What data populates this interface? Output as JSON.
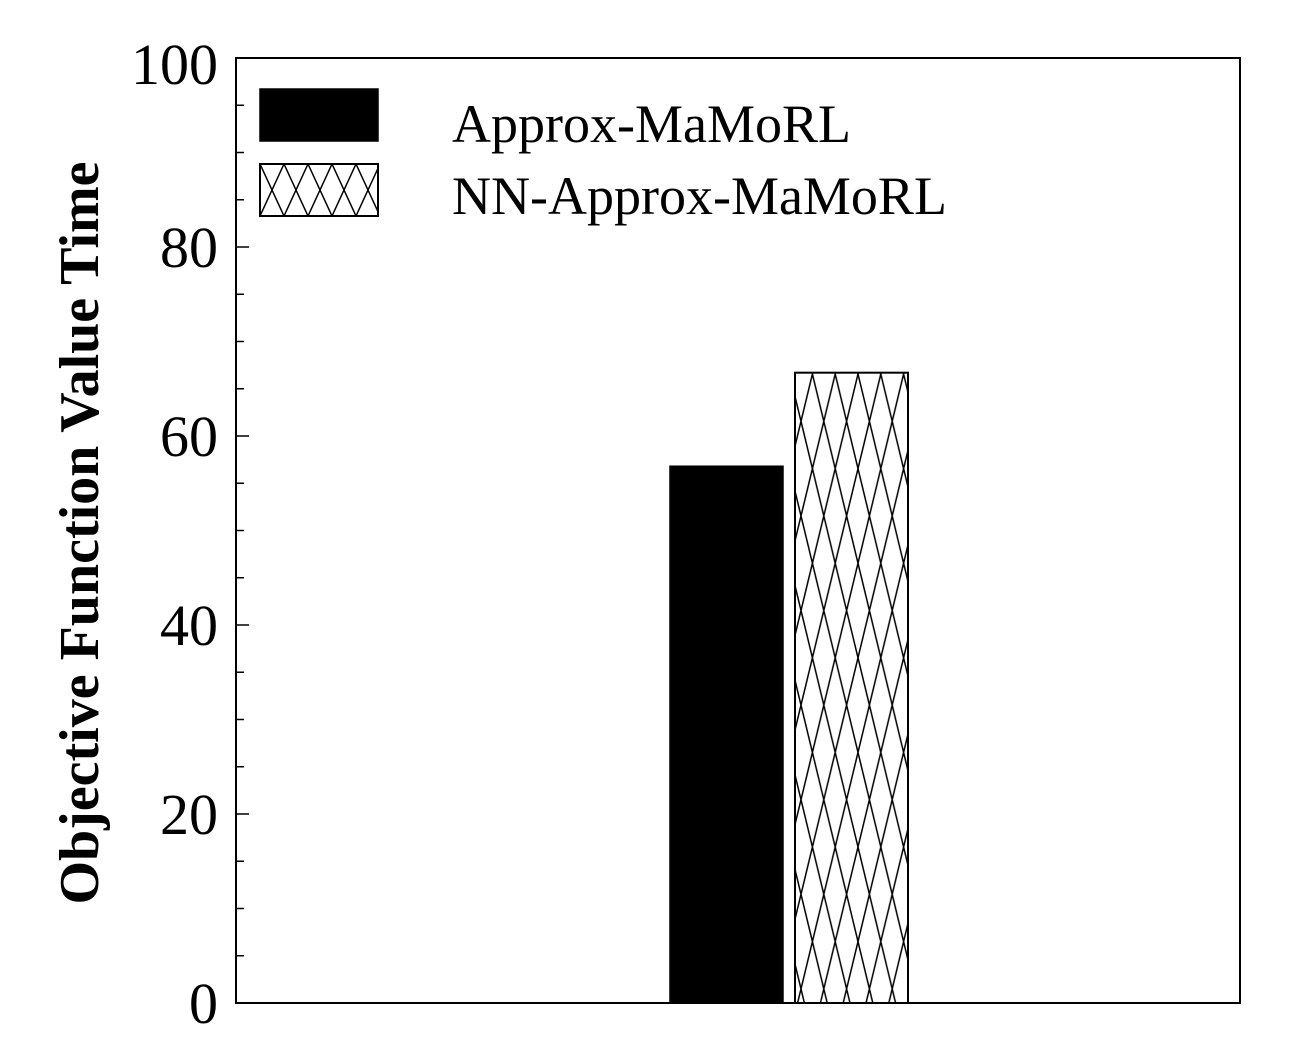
{
  "chart_data": {
    "type": "bar",
    "title": "",
    "xlabel": "",
    "ylabel": "Objective Function Value Time",
    "ylim": [
      0,
      100
    ],
    "yticks": [
      "0",
      "20",
      "40",
      "60",
      "80",
      "100"
    ],
    "ytick_values": [
      0,
      20,
      40,
      60,
      80,
      100
    ],
    "minor_tick_step": 5,
    "categories": [
      ""
    ],
    "series": [
      {
        "name": "Approx-MaMoRL",
        "values": [
          56.8
        ],
        "fill": "solid",
        "color": "#000000"
      },
      {
        "name": "NN-Approx-MaMoRL",
        "values": [
          66.7
        ],
        "fill": "crosshatch",
        "color": "#000000"
      }
    ],
    "legend_position": "top-left",
    "grid": false
  }
}
